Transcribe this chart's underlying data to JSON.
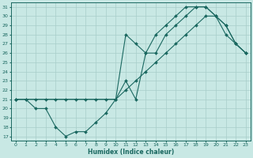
{
  "xlabel": "Humidex (Indice chaleur)",
  "bg_color": "#c8e8e4",
  "grid_color": "#a8ceca",
  "line_color": "#1a6860",
  "xlim": [
    -0.5,
    23.5
  ],
  "ylim": [
    16.5,
    31.5
  ],
  "xticks": [
    0,
    1,
    2,
    3,
    4,
    5,
    6,
    7,
    8,
    9,
    10,
    11,
    12,
    13,
    14,
    15,
    16,
    17,
    18,
    19,
    20,
    21,
    22,
    23
  ],
  "yticks": [
    17,
    18,
    19,
    20,
    21,
    22,
    23,
    24,
    25,
    26,
    27,
    28,
    29,
    30,
    31
  ],
  "line1_x": [
    0,
    1,
    2,
    3,
    4,
    5,
    6,
    7,
    8,
    9,
    10,
    11,
    12,
    13,
    14,
    15,
    16,
    17,
    18,
    19,
    20,
    21,
    22,
    23
  ],
  "line1_y": [
    21,
    21,
    20,
    20,
    18,
    17,
    17.5,
    17.5,
    18.5,
    19.5,
    21,
    28,
    27,
    26,
    26,
    28,
    29,
    30,
    31,
    31,
    30,
    29,
    27,
    26
  ],
  "line2_x": [
    0,
    1,
    2,
    3,
    4,
    5,
    6,
    7,
    8,
    9,
    10,
    11,
    12,
    13,
    14,
    15,
    16,
    17,
    18,
    19,
    20,
    21,
    22,
    23
  ],
  "line2_y": [
    21,
    21,
    21,
    21,
    21,
    21,
    21,
    21,
    21,
    21,
    21,
    22,
    23,
    24,
    25,
    26,
    27,
    28,
    29,
    30,
    30,
    28,
    27,
    26
  ],
  "line3_x": [
    0,
    10,
    11,
    12,
    13,
    14,
    15,
    16,
    17,
    18,
    19,
    20,
    21,
    22,
    23
  ],
  "line3_y": [
    21,
    21,
    23,
    21,
    26,
    28,
    29,
    30,
    31,
    31,
    31,
    30,
    29,
    27,
    26
  ]
}
